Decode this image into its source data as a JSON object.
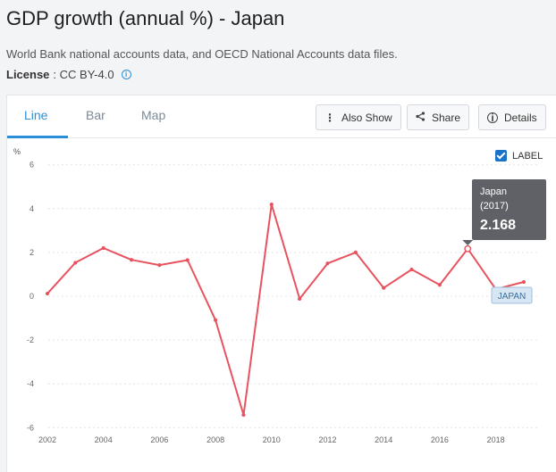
{
  "page": {
    "title": "GDP growth (annual %) - Japan",
    "source": "World Bank national accounts data, and OECD National Accounts data files.",
    "license_label": "License",
    "license_value": ": CC BY-4.0"
  },
  "tabs": [
    {
      "label": "Line",
      "active": true
    },
    {
      "label": "Bar",
      "active": false
    },
    {
      "label": "Map",
      "active": false
    }
  ],
  "toolbar": {
    "also_show_label": "Also Show",
    "share_label": "Share",
    "details_label": "Details"
  },
  "label_toggle": {
    "label": "LABEL",
    "checked": true
  },
  "tooltip": {
    "country": "Japan",
    "year": "(2017)",
    "value": "2.168"
  },
  "series_label": "JAPAN",
  "colors": {
    "line": "#e8535f",
    "accent": "#2a8fd6",
    "tooltip_bg": "#5f6166"
  },
  "chart_data": {
    "type": "line",
    "title": "",
    "ylabel": "%",
    "xlabel": "",
    "ylim": [
      -6,
      6
    ],
    "yticks": [
      6,
      4,
      2,
      0,
      -2,
      -4,
      -6
    ],
    "xticks": [
      2002,
      2004,
      2006,
      2008,
      2010,
      2012,
      2014,
      2016,
      2018
    ],
    "grid": true,
    "series": [
      {
        "name": "JAPAN",
        "x": [
          2002,
          2003,
          2004,
          2005,
          2006,
          2007,
          2008,
          2009,
          2010,
          2011,
          2012,
          2013,
          2014,
          2015,
          2016,
          2017,
          2018,
          2019
        ],
        "values": [
          0.12,
          1.53,
          2.2,
          1.66,
          1.42,
          1.65,
          -1.09,
          -5.42,
          4.19,
          -0.12,
          1.5,
          2.0,
          0.38,
          1.22,
          0.52,
          2.168,
          0.32,
          0.65
        ]
      }
    ]
  }
}
